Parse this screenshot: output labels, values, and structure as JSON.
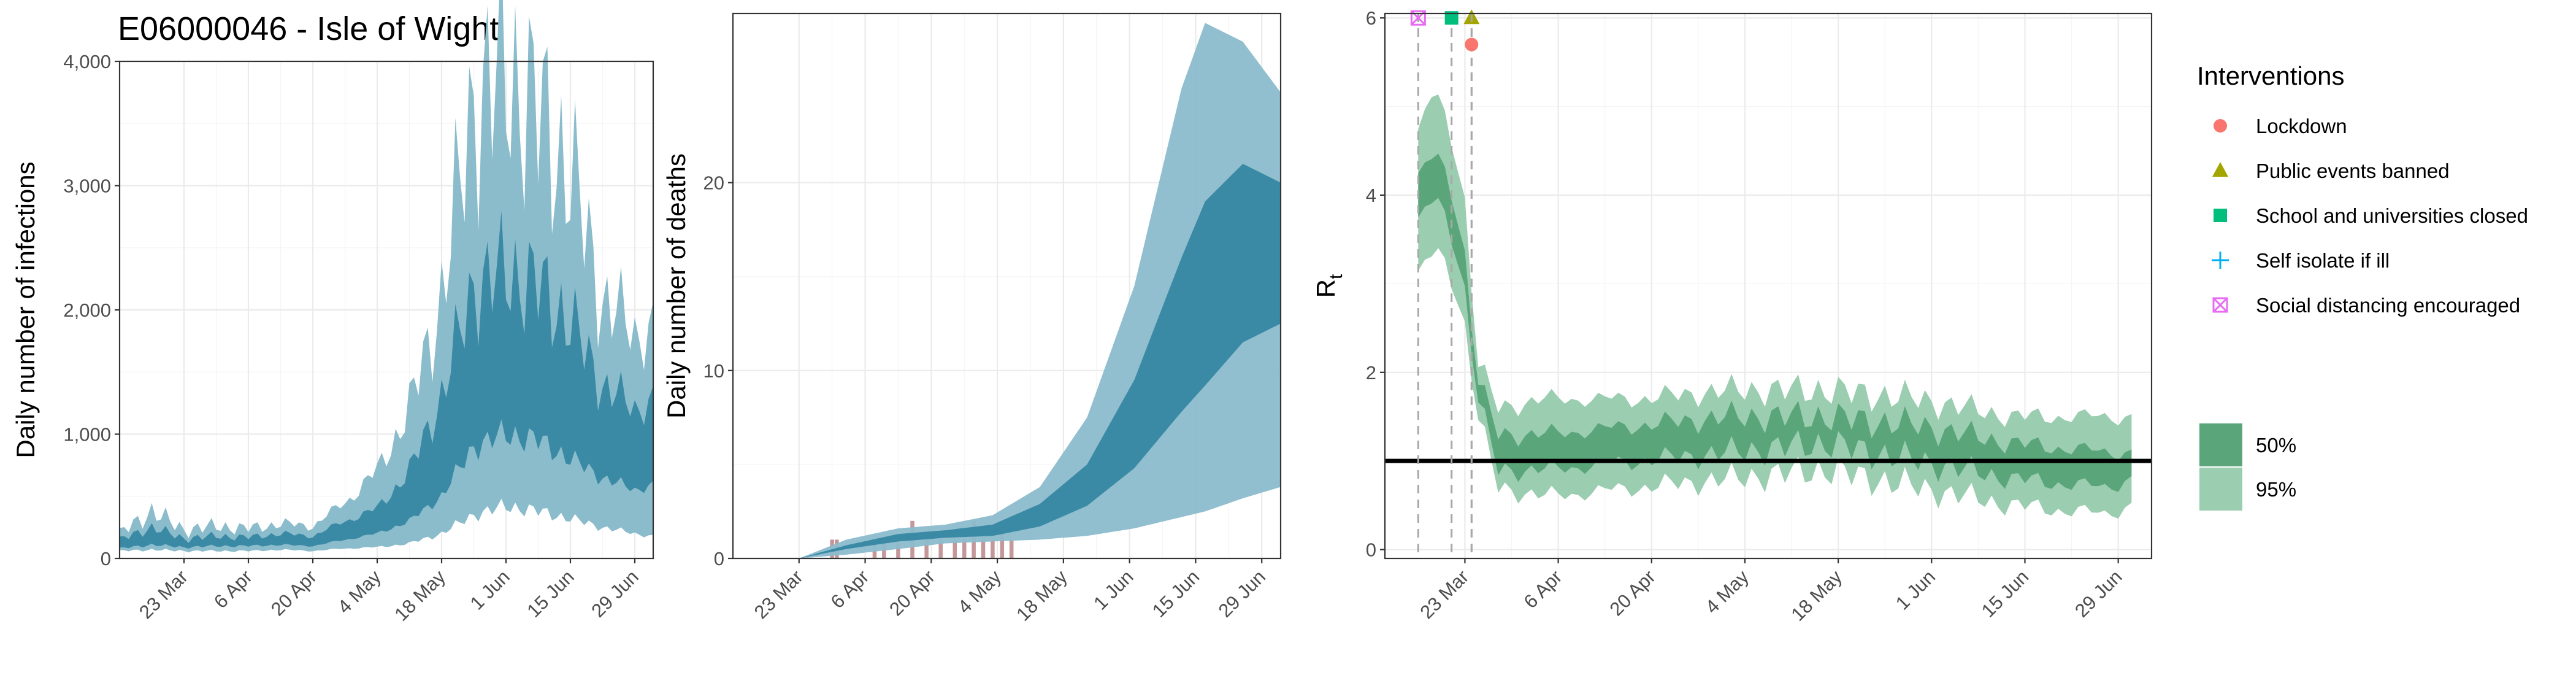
{
  "title": "E06000046 - Isle of Wight",
  "colors": {
    "infections_95": "#8bbccc",
    "infections_50": "#3b8aa5",
    "deaths_95": "#8bbccc",
    "deaths_50": "#3b8aa5",
    "deaths_observed": "#c4989a",
    "rt_95": "#9bcdb0",
    "rt_50": "#5aa67a",
    "rt_median": "#4a9a6c",
    "threshold": "#000000",
    "lockdown": "#f8766d",
    "public_events": "#a3a500",
    "school": "#00bf7d",
    "self_isolate": "#00b0f6",
    "social_distancing": "#e76bf3"
  },
  "legend": {
    "interventions_title": "Interventions",
    "interventions": [
      {
        "label": "Lockdown",
        "shape": "circle",
        "color": "#f8766d"
      },
      {
        "label": "Public events banned",
        "shape": "triangle",
        "color": "#a3a500"
      },
      {
        "label": "School and universities closed",
        "shape": "square",
        "color": "#00bf7d"
      },
      {
        "label": "Self isolate if ill",
        "shape": "plus",
        "color": "#00b0f6"
      },
      {
        "label": "Social distancing encouraged",
        "shape": "square-cross",
        "color": "#e76bf3"
      }
    ],
    "intervals": [
      {
        "label": "50%",
        "color": "#5aa67a"
      },
      {
        "label": "95%",
        "color": "#9bcdb0"
      }
    ]
  },
  "chart_data": [
    {
      "type": "area",
      "ylabel": "Daily number of infections",
      "xlabel": "",
      "x_start": "2020-03-09",
      "x_end": "2020-07-03",
      "x_ticks": [
        "23 Mar",
        "6 Apr",
        "20 Apr",
        "4 May",
        "18 May",
        "1 Jun",
        "15 Jun",
        "29 Jun"
      ],
      "ylim": [
        0,
        4000
      ],
      "y_ticks": [
        "0",
        "1,000",
        "2,000",
        "3,000",
        "4,000"
      ],
      "bands": [
        {
          "name": "95%",
          "x": [
            "2020-03-09",
            "2020-03-16",
            "2020-03-23",
            "2020-03-30",
            "2020-04-06",
            "2020-04-13",
            "2020-04-20",
            "2020-04-27",
            "2020-05-04",
            "2020-05-11",
            "2020-05-18",
            "2020-05-25",
            "2020-06-01",
            "2020-06-08",
            "2020-06-15",
            "2020-06-22",
            "2020-06-29",
            "2020-07-03"
          ],
          "lower": [
            60,
            70,
            60,
            60,
            60,
            70,
            60,
            80,
            90,
            120,
            200,
            350,
            420,
            380,
            320,
            250,
            200,
            180
          ],
          "upper": [
            200,
            380,
            230,
            260,
            240,
            280,
            260,
            450,
            700,
            1200,
            2100,
            3700,
            3900,
            3600,
            3100,
            2100,
            1800,
            1900
          ]
        },
        {
          "name": "50%",
          "x": [
            "2020-03-09",
            "2020-03-16",
            "2020-03-23",
            "2020-03-30",
            "2020-04-06",
            "2020-04-13",
            "2020-04-20",
            "2020-04-27",
            "2020-05-04",
            "2020-05-11",
            "2020-05-18",
            "2020-05-25",
            "2020-06-01",
            "2020-06-08",
            "2020-06-15",
            "2020-06-22",
            "2020-06-29",
            "2020-07-03"
          ],
          "lower": [
            80,
            110,
            90,
            100,
            100,
            110,
            100,
            150,
            200,
            300,
            500,
            900,
            1000,
            950,
            800,
            650,
            550,
            600
          ],
          "upper": [
            150,
            250,
            160,
            180,
            170,
            200,
            180,
            300,
            400,
            700,
            1300,
            2200,
            2300,
            2200,
            1900,
            1400,
            1200,
            1300
          ]
        }
      ]
    },
    {
      "type": "area",
      "ylabel": "Daily number of deaths",
      "xlabel": "",
      "x_start": "2020-03-09",
      "x_end": "2020-07-03",
      "x_ticks": [
        "23 Mar",
        "6 Apr",
        "20 Apr",
        "4 May",
        "18 May",
        "1 Jun",
        "15 Jun",
        "29 Jun"
      ],
      "ylim": [
        0,
        29
      ],
      "y_ticks": [
        "0",
        "10",
        "20"
      ],
      "bands": [
        {
          "name": "95%",
          "x": [
            "2020-03-23",
            "2020-04-02",
            "2020-04-13",
            "2020-04-23",
            "2020-05-03",
            "2020-05-13",
            "2020-05-23",
            "2020-06-02",
            "2020-06-12",
            "2020-06-17",
            "2020-06-25",
            "2020-07-03"
          ],
          "lower": [
            0,
            0.2,
            0.5,
            0.8,
            0.9,
            1.0,
            1.2,
            1.6,
            2.2,
            2.5,
            3.2,
            3.8
          ],
          "upper": [
            0,
            1.0,
            1.6,
            1.8,
            2.3,
            3.8,
            7.5,
            14.5,
            25.0,
            28.5,
            27.5,
            24.8
          ]
        },
        {
          "name": "50%",
          "x": [
            "2020-03-23",
            "2020-04-02",
            "2020-04-13",
            "2020-04-23",
            "2020-05-03",
            "2020-05-13",
            "2020-05-23",
            "2020-06-02",
            "2020-06-12",
            "2020-06-17",
            "2020-06-25",
            "2020-07-03"
          ],
          "lower": [
            0,
            0.5,
            0.9,
            1.1,
            1.2,
            1.7,
            2.8,
            4.8,
            7.8,
            9.2,
            11.5,
            12.5
          ],
          "upper": [
            0,
            0.7,
            1.3,
            1.5,
            1.8,
            2.9,
            5.0,
            9.5,
            16.0,
            19.0,
            21.0,
            20.0
          ]
        }
      ],
      "observed": {
        "name": "deaths",
        "x": [
          "2020-03-30",
          "2020-03-31",
          "2020-04-08",
          "2020-04-10",
          "2020-04-13",
          "2020-04-16",
          "2020-04-19",
          "2020-04-22",
          "2020-04-25",
          "2020-04-27",
          "2020-04-29",
          "2020-05-01",
          "2020-05-03",
          "2020-05-05",
          "2020-05-07"
        ],
        "values": [
          1,
          1,
          1,
          1,
          1,
          2,
          1,
          1,
          1,
          1,
          2,
          1,
          1,
          2,
          1
        ]
      }
    },
    {
      "type": "line",
      "ylabel": "R",
      "ylabel_sub": "t",
      "xlabel": "",
      "x_start": "2020-03-11",
      "x_end": "2020-07-04",
      "x_ticks": [
        "23 Mar",
        "6 Apr",
        "20 Apr",
        "4 May",
        "18 May",
        "1 Jun",
        "15 Jun",
        "29 Jun"
      ],
      "ylim": [
        -0.1,
        6.05
      ],
      "y_ticks": [
        "0",
        "2",
        "4",
        "6"
      ],
      "threshold": 1,
      "intervention_dates": [
        {
          "name": "Social distancing encouraged",
          "date": "2020-03-16",
          "value": 6.0
        },
        {
          "name": "School and universities closed",
          "date": "2020-03-21",
          "value": 6.0
        },
        {
          "name": "Public events banned",
          "date": "2020-03-24",
          "value": 6.0
        },
        {
          "name": "Lockdown",
          "date": "2020-03-24",
          "value": 5.7
        }
      ],
      "series": [
        {
          "name": "95%",
          "x": [
            "2020-03-16",
            "2020-03-18",
            "2020-03-21",
            "2020-03-23",
            "2020-03-25",
            "2020-03-28",
            "2020-04-04",
            "2020-04-18",
            "2020-05-02",
            "2020-05-16",
            "2020-05-30",
            "2020-06-13",
            "2020-06-27",
            "2020-07-01"
          ],
          "lower": [
            3.0,
            3.4,
            3.1,
            2.5,
            1.5,
            0.7,
            0.6,
            0.7,
            0.8,
            0.9,
            0.7,
            0.5,
            0.4,
            0.5
          ],
          "upper": [
            4.6,
            5.2,
            4.7,
            3.9,
            2.1,
            1.6,
            1.7,
            1.7,
            1.8,
            1.8,
            1.7,
            1.5,
            1.5,
            1.5
          ]
        },
        {
          "name": "50%",
          "x": [
            "2020-03-16",
            "2020-03-18",
            "2020-03-21",
            "2020-03-23",
            "2020-03-25",
            "2020-03-28",
            "2020-04-04",
            "2020-04-18",
            "2020-05-02",
            "2020-05-16",
            "2020-05-30",
            "2020-06-13",
            "2020-06-27",
            "2020-07-01"
          ],
          "lower": [
            3.6,
            4.0,
            3.6,
            2.9,
            1.7,
            0.9,
            0.9,
            1.0,
            1.1,
            1.2,
            1.0,
            0.8,
            0.7,
            0.8
          ],
          "upper": [
            4.1,
            4.5,
            4.1,
            3.3,
            1.9,
            1.3,
            1.3,
            1.4,
            1.5,
            1.5,
            1.4,
            1.2,
            1.1,
            1.1
          ]
        }
      ]
    }
  ]
}
